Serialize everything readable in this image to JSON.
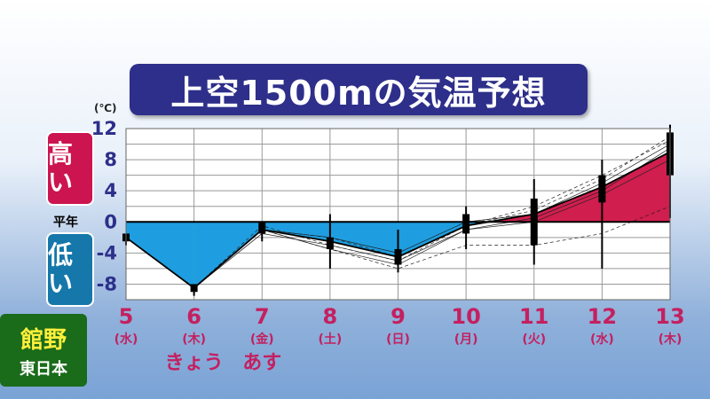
{
  "title": "上空1500mの気温予想",
  "unit_label": "(℃)",
  "side_labels": {
    "high": "高い",
    "low": "低い",
    "average": "平年"
  },
  "station": {
    "name": "館野",
    "region": "東日本"
  },
  "colors": {
    "above_fill": "#d01e4e",
    "below_fill": "#1e9ee0",
    "title_bg": "#2d2f8a",
    "day_label": "#c42060",
    "axis_label": "#2d2f8a"
  },
  "chart_data": {
    "type": "line",
    "title": "上空1500mの気温予想",
    "ylabel": "(℃)",
    "ylim": [
      -10,
      12
    ],
    "yticks": [
      12,
      8,
      4,
      0,
      -4,
      -8
    ],
    "grid": true,
    "categories": [
      {
        "day": "5",
        "weekday": "(水)",
        "note": ""
      },
      {
        "day": "6",
        "weekday": "(木)",
        "note": "きょう"
      },
      {
        "day": "7",
        "weekday": "(金)",
        "note": "あす"
      },
      {
        "day": "8",
        "weekday": "(土)",
        "note": ""
      },
      {
        "day": "9",
        "weekday": "(日)",
        "note": ""
      },
      {
        "day": "10",
        "weekday": "(月)",
        "note": ""
      },
      {
        "day": "11",
        "weekday": "(火)",
        "note": ""
      },
      {
        "day": "12",
        "weekday": "(水)",
        "note": ""
      },
      {
        "day": "13",
        "weekday": "(木)",
        "note": ""
      }
    ],
    "mean": [
      -2,
      -8.5,
      -1,
      -2.5,
      -4.5,
      -0.5,
      1,
      4.5,
      9
    ],
    "spread": [
      {
        "min": -3,
        "max": -1.5,
        "q1": -2.5,
        "q3": -1.5
      },
      {
        "min": -9.5,
        "max": -8,
        "q1": -9,
        "q3": -8
      },
      {
        "min": -2.5,
        "max": 0,
        "q1": -1.5,
        "q3": 0
      },
      {
        "min": -6,
        "max": 1,
        "q1": -3.5,
        "q3": -2
      },
      {
        "min": -6.5,
        "max": -1,
        "q1": -5.5,
        "q3": -3.5
      },
      {
        "min": -3.5,
        "max": 2,
        "q1": -1.5,
        "q3": 1
      },
      {
        "min": -5.5,
        "max": 5.5,
        "q1": -3,
        "q3": 3
      },
      {
        "min": -6,
        "max": 8,
        "q1": 2.5,
        "q3": 6
      },
      {
        "min": 0.5,
        "max": 12.5,
        "q1": 6,
        "q3": 11.5
      }
    ],
    "members": [
      [
        -2,
        -8.5,
        -1,
        -2,
        -4,
        0,
        1,
        5,
        10
      ],
      [
        -2,
        -8.5,
        -0.5,
        -3,
        -5,
        -0.5,
        1.5,
        5.5,
        11
      ],
      [
        -2,
        -8.5,
        -1,
        -3.5,
        -5.5,
        -1,
        0,
        3.5,
        8
      ],
      [
        -2,
        -8.5,
        -1,
        -2,
        -4.5,
        -0.5,
        2,
        6,
        10.5
      ],
      [
        -2,
        -8.5,
        -1.5,
        -3,
        -5,
        -1,
        0.5,
        4,
        9.5
      ],
      [
        -2,
        -8.5,
        -1,
        -3.5,
        -6,
        -3,
        -3,
        -1.5,
        2
      ]
    ]
  }
}
